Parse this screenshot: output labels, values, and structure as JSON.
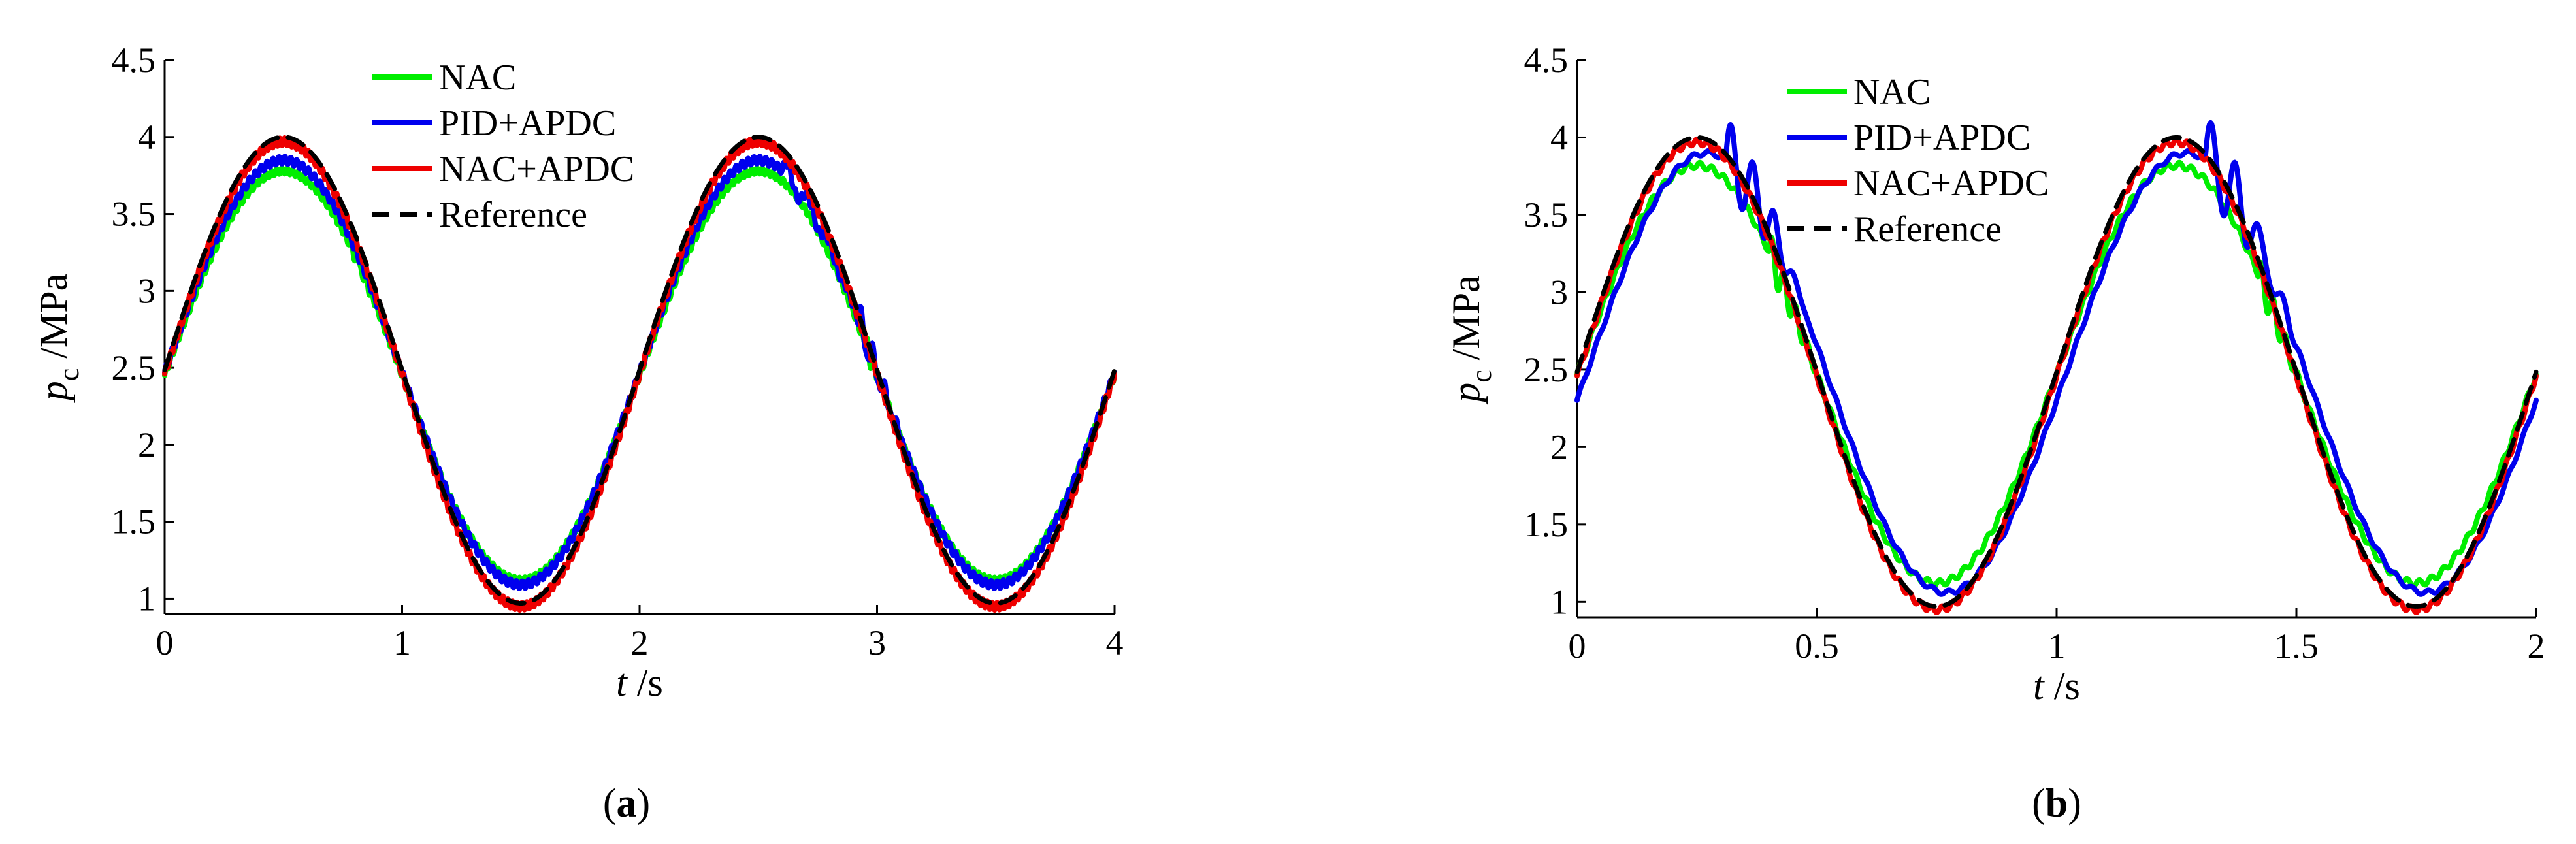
{
  "chart_data": [
    {
      "type": "line",
      "panel_label": "(a)",
      "panel_letter": "a",
      "title": "",
      "xlabel": "t /s",
      "xlabel_var": "t",
      "xlabel_unit": " /s",
      "ylabel": "p c /MPa",
      "ylabel_var": "p",
      "ylabel_sub": "c",
      "ylabel_unit": " /MPa",
      "xlim": [
        0,
        4
      ],
      "ylim": [
        0.9,
        4.5
      ],
      "xticks": [
        0,
        1,
        2,
        3,
        4
      ],
      "xtick_labels": [
        "0",
        "1",
        "2",
        "3",
        "4"
      ],
      "yticks": [
        1,
        1.5,
        2,
        2.5,
        3,
        3.5,
        4,
        4.5
      ],
      "ytick_labels": [
        "1",
        "1.5",
        "2",
        "2.5",
        "3",
        "3.5",
        "4",
        "4.5"
      ],
      "grid": false,
      "legend_position": "top-center",
      "period": 2,
      "series": [
        {
          "name": "NAC",
          "color": "#00ee00",
          "dash": "solid",
          "min": 1.12,
          "max": 3.78,
          "phase_shift": 0.0,
          "ripple_amp": 0.02,
          "ripple_freq": 45,
          "disturbances": [
            {
              "t": 0.78,
              "amp": 0.05,
              "dur": 0.12
            },
            {
              "t": 2.95,
              "amp": 0.06,
              "dur": 0.12
            }
          ]
        },
        {
          "name": "PID+APDC",
          "color": "#0000ee",
          "dash": "solid",
          "min": 1.09,
          "max": 3.85,
          "phase_shift": 0.0,
          "ripple_amp": 0.025,
          "ripple_freq": 40,
          "disturbances": [
            {
              "t": 2.6,
              "amp": 0.08,
              "dur": 0.35
            },
            {
              "t": 2.92,
              "amp": 0.12,
              "dur": 0.2
            }
          ]
        },
        {
          "name": "NAC+APDC",
          "color": "#ee0000",
          "dash": "solid",
          "min": 0.95,
          "max": 3.97,
          "phase_shift": 0.0,
          "ripple_amp": 0.025,
          "ripple_freq": 50,
          "disturbances": []
        },
        {
          "name": "Reference",
          "color": "#000000",
          "dash": "dashed",
          "min": 0.97,
          "max": 4.0,
          "phase_shift": 0.0,
          "ripple_amp": 0,
          "ripple_freq": 0,
          "disturbances": []
        }
      ]
    },
    {
      "type": "line",
      "panel_label": "(b)",
      "panel_letter": "b",
      "title": "",
      "xlabel": "t /s",
      "xlabel_var": "t",
      "xlabel_unit": " /s",
      "ylabel": "p c /MPa",
      "ylabel_var": "p",
      "ylabel_sub": "c",
      "ylabel_unit": " /MPa",
      "xlim": [
        0,
        2
      ],
      "ylim": [
        0.9,
        4.5
      ],
      "xticks": [
        0,
        0.5,
        1,
        1.5,
        2
      ],
      "xtick_labels": [
        "0",
        "0.5",
        "1",
        "1.5",
        "2"
      ],
      "yticks": [
        1,
        1.5,
        2,
        2.5,
        3,
        3.5,
        4,
        4.5
      ],
      "ytick_labels": [
        "1",
        "1.5",
        "2",
        "2.5",
        "3",
        "3.5",
        "4",
        "4.5"
      ],
      "grid": false,
      "legend_position": "top-center",
      "period": 1,
      "series": [
        {
          "name": "NAC",
          "color": "#00ee00",
          "dash": "solid",
          "min": 1.12,
          "max": 3.82,
          "phase_shift": 0.0,
          "ripple_amp": 0.02,
          "ripple_freq": 40,
          "disturbances": [
            {
              "t": 0.4,
              "amp": 0.12,
              "dur": 0.1
            },
            {
              "t": 1.42,
              "amp": 0.12,
              "dur": 0.1
            }
          ]
        },
        {
          "name": "PID+APDC",
          "color": "#0000ee",
          "dash": "solid",
          "min": 1.06,
          "max": 3.9,
          "phase_shift": 0.02,
          "ripple_amp": 0.015,
          "ripple_freq": 30,
          "disturbances": [
            {
              "t": 0.31,
              "amp": 0.28,
              "dur": 0.18
            },
            {
              "t": 1.31,
              "amp": 0.3,
              "dur": 0.2
            }
          ]
        },
        {
          "name": "NAC+APDC",
          "color": "#ee0000",
          "dash": "solid",
          "min": 0.95,
          "max": 3.97,
          "phase_shift": 0.0,
          "ripple_amp": 0.02,
          "ripple_freq": 45,
          "disturbances": []
        },
        {
          "name": "Reference",
          "color": "#000000",
          "dash": "dashed",
          "min": 0.97,
          "max": 4.0,
          "phase_shift": 0.0,
          "ripple_amp": 0,
          "ripple_freq": 0,
          "disturbances": []
        }
      ]
    }
  ]
}
